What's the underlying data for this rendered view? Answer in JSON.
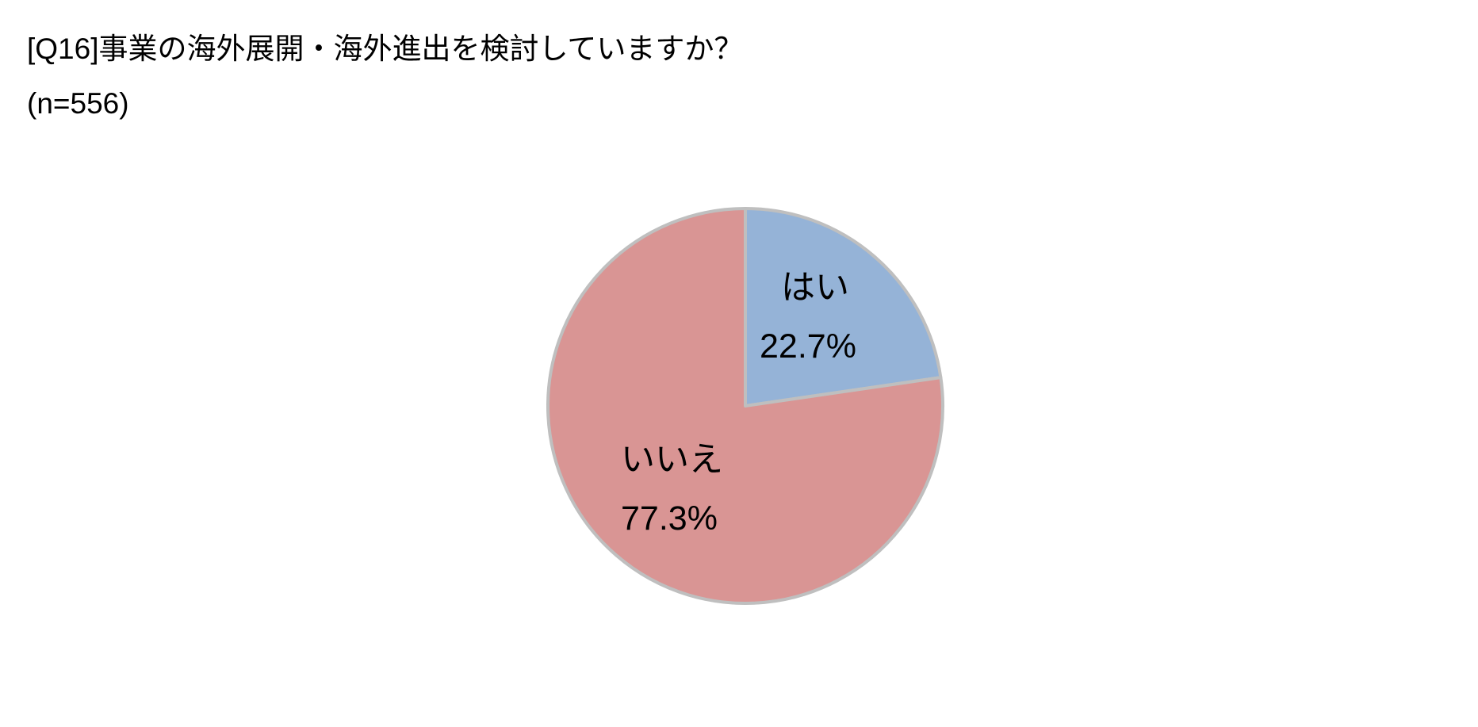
{
  "title": "[Q16]事業の海外展開・海外進出を検討していますか？",
  "subtitle": "(n=556)",
  "chart_data": {
    "type": "pie",
    "title": "[Q16]事業の海外展開・海外進出を検討していますか？",
    "subtitle": "(n=556)",
    "start_angle": "12 o'clock",
    "direction": "clockwise",
    "legend": "none",
    "slice_border_color": "#bfbfbf",
    "slices": [
      {
        "label": "はい",
        "value": 22.7,
        "value_label": "22.7%",
        "color": "#95b3d7"
      },
      {
        "label": "いいえ",
        "value": 77.3,
        "value_label": "77.3%",
        "color": "#d99594"
      }
    ]
  }
}
